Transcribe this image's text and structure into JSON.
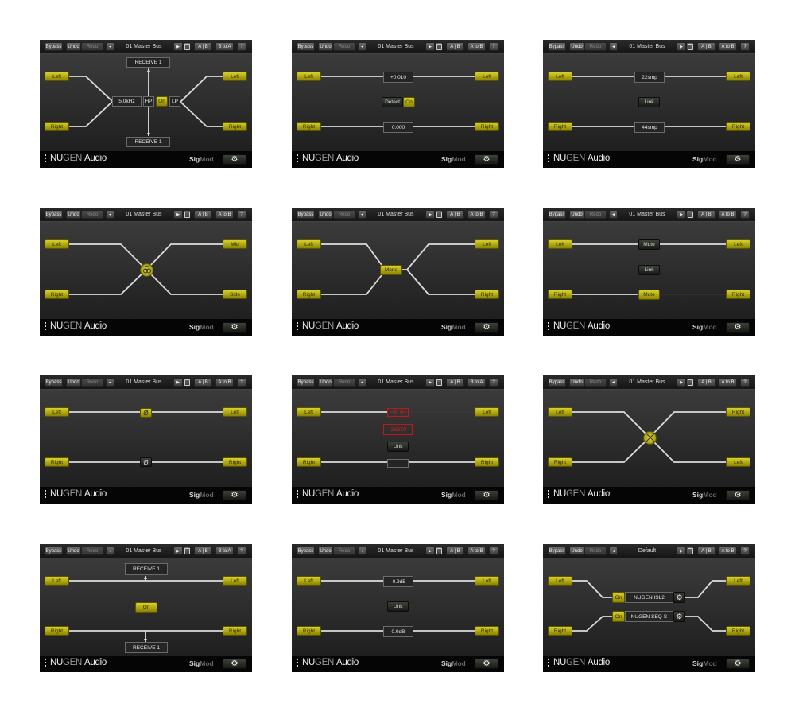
{
  "footer": {
    "brand_nu": "NU",
    "brand_gen": "GEN",
    "brand_audio": "Audio",
    "product_sig": "Sig",
    "product_mod": "Mod"
  },
  "colors": {
    "accent_yellow": "#c8c020",
    "warning_red": "#d82020",
    "background": "#2a2a2a"
  },
  "icons": {
    "back": "◄",
    "play": "▶",
    "gear": "⚙",
    "phase": "Ø"
  },
  "panels": [
    {
      "toolbar": {
        "bypass": "Bypass",
        "undo": "Undo",
        "redo": "Redo",
        "preset": "01 Master Bus",
        "ab": "A | B",
        "copy": "B to A",
        "help": "?"
      },
      "inputs": [
        "Left",
        "Right"
      ],
      "outputs": [
        "Left",
        "Right"
      ],
      "controls": {
        "receive_top": "RECEIVE 1",
        "frequency": "5.0kHz",
        "hp": "HP",
        "on": "On",
        "lp": "LP",
        "receive_bottom": "RECEIVE 1"
      }
    },
    {
      "toolbar": {
        "bypass": "Bypass",
        "undo": "Undo",
        "redo": "Redo",
        "preset": "01 Master Bus",
        "ab": "A | B",
        "copy": "A to B",
        "help": "?"
      },
      "inputs": [
        "Left",
        "Right"
      ],
      "outputs": [
        "Left",
        "Right"
      ],
      "controls": {
        "left_value": "+0.010",
        "detect": "Detect",
        "on": "On",
        "right_value": "0.000"
      }
    },
    {
      "toolbar": {
        "bypass": "Bypass",
        "undo": "Undo",
        "redo": "Redo",
        "preset": "01 Master Bus",
        "ab": "A | B",
        "copy": "A to B",
        "help": "?"
      },
      "inputs": [
        "Left",
        "Right"
      ],
      "outputs": [
        "Left",
        "Right"
      ],
      "controls": {
        "left_delay": "22smp",
        "link": "Link",
        "right_delay": "44smp"
      }
    },
    {
      "toolbar": {
        "bypass": "Bypass",
        "undo": "Undo",
        "redo": "Redo",
        "preset": "01 Master Bus",
        "ab": "A | B",
        "copy": "A to B",
        "help": "?"
      },
      "inputs": [
        "Left",
        "Right"
      ],
      "outputs": [
        "Mid",
        "Side"
      ],
      "controls": {
        "icon": "mid-side-icon"
      }
    },
    {
      "toolbar": {
        "bypass": "Bypass",
        "undo": "Undo",
        "redo": "Redo",
        "preset": "01 Master Bus",
        "ab": "A | B",
        "copy": "A to B",
        "help": "?"
      },
      "inputs": [
        "Left",
        "Right"
      ],
      "outputs": [
        "Left",
        "Right"
      ],
      "controls": {
        "mono": "Mono"
      }
    },
    {
      "toolbar": {
        "bypass": "Bypass",
        "undo": "Undo",
        "redo": "Redo",
        "preset": "01 Master Bus",
        "ab": "A | B",
        "copy": "A to B",
        "help": "?"
      },
      "inputs": [
        "Left",
        "Right"
      ],
      "outputs": [
        "Left",
        "Right"
      ],
      "controls": {
        "mute_left": "Mute",
        "link": "Link",
        "mute_right": "Mute",
        "mute_left_active": false,
        "mute_right_active": true
      }
    },
    {
      "toolbar": {
        "bypass": "Bypass",
        "undo": "Undo",
        "redo": "Redo",
        "preset": "01 Master Bus",
        "ab": "A | B",
        "copy": "A to B",
        "help": "?"
      },
      "inputs": [
        "Left",
        "Right"
      ],
      "outputs": [
        "Left",
        "Right"
      ],
      "controls": {
        "phase_left_active": true,
        "phase_right_active": false
      }
    },
    {
      "toolbar": {
        "bypass": "Bypass",
        "undo": "Undo",
        "redo": "Redo",
        "preset": "01 Master Bus",
        "ab": "A | B",
        "copy": "B to A",
        "help": "?"
      },
      "inputs": [
        "Left",
        "Right"
      ],
      "outputs": [
        "Left",
        "Right"
      ],
      "controls": {
        "limit": "-2dBTP",
        "link": "Link"
      }
    },
    {
      "toolbar": {
        "bypass": "Bypass",
        "undo": "Undo",
        "redo": "Redo",
        "preset": "01 Master Bus",
        "ab": "A | B",
        "copy": "A to B",
        "help": "?"
      },
      "inputs": [
        "Left",
        "Right"
      ],
      "outputs": [
        "Right",
        "Left"
      ],
      "controls": {
        "icon": "swap-icon"
      }
    },
    {
      "toolbar": {
        "bypass": "Bypass",
        "undo": "Undo",
        "redo": "Redo",
        "preset": "01 Master Bus",
        "ab": "A | B",
        "copy": "B to A",
        "help": "?"
      },
      "inputs": [
        "Left",
        "Right"
      ],
      "outputs": [
        "Left",
        "Right"
      ],
      "controls": {
        "receive_top": "RECEIVE 1",
        "on": "On",
        "receive_bottom": "RECEIVE 1"
      }
    },
    {
      "toolbar": {
        "bypass": "Bypass",
        "undo": "Undo",
        "redo": "Redo",
        "preset": "01 Master Bus",
        "ab": "A | B",
        "copy": "A to B",
        "help": "?"
      },
      "inputs": [
        "Left",
        "Right"
      ],
      "outputs": [
        "Left",
        "Right"
      ],
      "controls": {
        "left_gain": "-0.9dB",
        "link": "Link",
        "right_gain": "0.0dB"
      }
    },
    {
      "toolbar": {
        "bypass": "Bypass",
        "undo": "Undo",
        "redo": "Redo",
        "preset": "Default",
        "ab": "A | B",
        "copy": "A to B",
        "help": "?"
      },
      "inputs": [
        "Left",
        "Right"
      ],
      "outputs": [
        "Left",
        "Right"
      ],
      "controls": {
        "slot1_on": "On",
        "slot1_name": "NUGEN ISL2",
        "slot2_on": "On",
        "slot2_name": "NUGEN SEQ-S"
      }
    }
  ]
}
